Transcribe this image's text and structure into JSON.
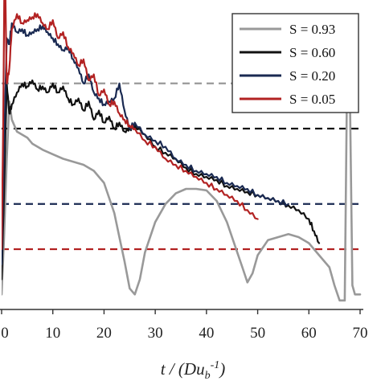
{
  "chart_data": {
    "type": "line",
    "title": "",
    "xlabel": "t / (Du_b^-1)",
    "xlabel_parts": {
      "prefix": "t / (Du",
      "sub": "b",
      "sup": "-1",
      "suffix": ")"
    },
    "ylabel": "",
    "xlim": [
      0,
      70
    ],
    "ylim": [
      0,
      10
    ],
    "x_ticks": [
      "0",
      "10",
      "20",
      "30",
      "40",
      "50",
      "60",
      "70"
    ],
    "grid": false,
    "legend_position": "top-right",
    "series": [
      {
        "name": "S = 0.93",
        "color": "#999999",
        "x": [
          0,
          0.5,
          1,
          1.5,
          2,
          3,
          4,
          5,
          6,
          8,
          10,
          12,
          14,
          16,
          18,
          20,
          22,
          23,
          24,
          25,
          26,
          27,
          28,
          30,
          32,
          34,
          36,
          38,
          40,
          42,
          44,
          46,
          47,
          48,
          49,
          50,
          52,
          54,
          56,
          58,
          60,
          62,
          64,
          65,
          66,
          67,
          67.5,
          68,
          68.5,
          69,
          70
        ],
        "y": [
          0.5,
          2.5,
          5.0,
          6.9,
          6.3,
          5.9,
          5.8,
          5.7,
          5.5,
          5.3,
          5.15,
          5.0,
          4.9,
          4.8,
          4.6,
          4.2,
          3.2,
          2.4,
          1.6,
          0.7,
          0.5,
          1.0,
          1.9,
          2.9,
          3.5,
          3.85,
          4.0,
          4.0,
          3.95,
          3.6,
          2.9,
          1.9,
          1.4,
          0.9,
          1.2,
          1.8,
          2.3,
          2.4,
          2.5,
          2.4,
          2.2,
          1.8,
          1.4,
          0.8,
          0.3,
          0.3,
          8.5,
          7.2,
          0.8,
          0.5,
          0.5
        ]
      },
      {
        "name": "S = 0.60",
        "color": "#111111",
        "x": [
          0,
          0.5,
          1,
          1.5,
          2,
          3,
          4,
          5,
          6,
          7,
          8,
          9,
          10,
          11,
          12,
          13,
          14,
          15,
          16,
          17,
          18,
          19,
          20,
          21,
          22,
          23,
          24,
          25,
          26,
          28,
          30,
          32,
          34,
          36,
          38,
          40,
          42,
          44,
          46,
          48,
          50,
          52,
          54,
          56,
          58,
          60,
          61,
          62
        ],
        "y": [
          1.0,
          4.0,
          7.5,
          6.5,
          6.8,
          7.2,
          7.5,
          7.4,
          7.6,
          7.3,
          7.4,
          7.2,
          7.5,
          7.2,
          7.4,
          7.0,
          6.8,
          7.0,
          6.6,
          6.9,
          6.3,
          6.6,
          6.2,
          6.4,
          6.0,
          6.2,
          5.9,
          6.0,
          6.1,
          5.8,
          5.4,
          5.2,
          5.0,
          4.7,
          4.5,
          4.4,
          4.3,
          4.1,
          4.0,
          3.9,
          3.8,
          3.7,
          3.6,
          3.45,
          3.3,
          3.0,
          2.6,
          2.2
        ]
      },
      {
        "name": "S = 0.20",
        "color": "#1a2a52",
        "x": [
          0,
          0.5,
          1,
          1.5,
          2,
          3,
          4,
          5,
          6,
          7,
          8,
          9,
          10,
          11,
          12,
          13,
          14,
          15,
          16,
          17,
          18,
          19,
          20,
          21,
          22,
          23,
          24,
          25,
          26,
          28,
          30,
          32,
          34,
          36,
          38,
          40,
          42,
          44,
          46,
          48,
          50,
          52,
          54,
          56
        ],
        "y": [
          1.5,
          5.5,
          9.0,
          8.8,
          9.5,
          9.2,
          9.3,
          9.1,
          9.2,
          9.3,
          9.4,
          9.2,
          9.0,
          8.8,
          8.6,
          8.7,
          8.3,
          8.0,
          7.5,
          7.8,
          7.2,
          7.0,
          6.8,
          6.9,
          7.0,
          7.5,
          6.6,
          6.0,
          6.2,
          5.8,
          5.6,
          5.4,
          5.0,
          4.8,
          4.6,
          4.5,
          4.4,
          4.2,
          4.1,
          4.0,
          3.8,
          3.7,
          3.6,
          3.5
        ]
      },
      {
        "name": "S = 0.05",
        "color": "#b22222",
        "x": [
          0,
          0.3,
          0.6,
          1,
          1.5,
          2,
          3,
          4,
          5,
          6,
          7,
          8,
          9,
          10,
          11,
          12,
          13,
          14,
          15,
          16,
          17,
          18,
          19,
          20,
          21,
          22,
          23,
          24,
          25,
          26,
          28,
          30,
          32,
          34,
          36,
          38,
          40,
          42,
          44,
          46,
          48,
          50
        ],
        "y": [
          2.0,
          6.0,
          12.0,
          7.5,
          8.0,
          9.3,
          9.8,
          9.5,
          9.6,
          9.7,
          9.8,
          9.5,
          9.3,
          9.6,
          9.0,
          9.2,
          8.7,
          8.5,
          8.1,
          8.3,
          7.6,
          7.8,
          7.1,
          7.3,
          6.8,
          6.9,
          6.5,
          6.3,
          6.1,
          6.0,
          5.6,
          5.4,
          5.0,
          4.8,
          4.6,
          4.4,
          4.2,
          4.0,
          3.8,
          3.6,
          3.3,
          3.0
        ]
      }
    ],
    "reference_lines": [
      {
        "color": "#999999",
        "y": 7.5
      },
      {
        "color": "#111111",
        "y": 6.0
      },
      {
        "color": "#1a2a52",
        "y": 3.5
      },
      {
        "color": "#b22222",
        "y": 2.0
      }
    ]
  }
}
